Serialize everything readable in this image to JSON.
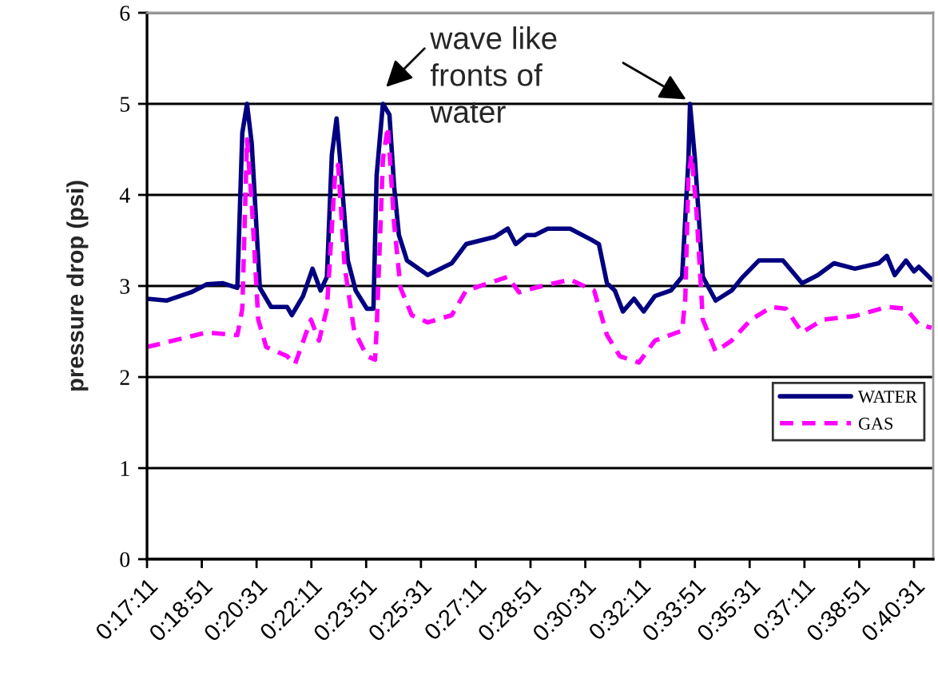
{
  "chart_data": {
    "type": "line",
    "ylabel": "pressure drop (psi)",
    "xlim": [
      0.28639,
      0.685
    ],
    "ylim": [
      0,
      6
    ],
    "yticks": [
      0,
      1,
      2,
      3,
      4,
      5,
      6
    ],
    "xticks": [
      {
        "value": 0.28639,
        "label": "0:17:11"
      },
      {
        "value": 0.31417,
        "label": "0:18:51"
      },
      {
        "value": 0.34194,
        "label": "0:20:31"
      },
      {
        "value": 0.36972,
        "label": "0:22:11"
      },
      {
        "value": 0.3975,
        "label": "0:23:51"
      },
      {
        "value": 0.42528,
        "label": "0:25:31"
      },
      {
        "value": 0.45306,
        "label": "0:27:11"
      },
      {
        "value": 0.48083,
        "label": "0:28:51"
      },
      {
        "value": 0.50861,
        "label": "0:30:31"
      },
      {
        "value": 0.53639,
        "label": "0:32:11"
      },
      {
        "value": 0.56417,
        "label": "0:33:51"
      },
      {
        "value": 0.59194,
        "label": "0:35:31"
      },
      {
        "value": 0.61972,
        "label": "0:37:11"
      },
      {
        "value": 0.6475,
        "label": "0:38:51"
      },
      {
        "value": 0.67528,
        "label": "0:40:31"
      }
    ],
    "grid": "y",
    "legend": "right",
    "marker": "none",
    "annotations": [
      {
        "text": "wave like\nfronts of\nwater",
        "x": 0.406,
        "y": 5.0
      }
    ],
    "series": [
      {
        "name": "WATER",
        "color": "#000080",
        "line_style": "solid",
        "x": [
          0.2864,
          0.2965,
          0.3087,
          0.3168,
          0.3249,
          0.3322,
          0.3347,
          0.3371,
          0.3395,
          0.3436,
          0.3493,
          0.3574,
          0.3598,
          0.3655,
          0.3703,
          0.3744,
          0.3776,
          0.3801,
          0.3825,
          0.3841,
          0.3882,
          0.3922,
          0.3979,
          0.4012,
          0.4028,
          0.406,
          0.4093,
          0.4117,
          0.4141,
          0.4182,
          0.4287,
          0.4409,
          0.4482,
          0.4628,
          0.4693,
          0.4733,
          0.479,
          0.4831,
          0.4896,
          0.5009,
          0.5115,
          0.5155,
          0.5196,
          0.5236,
          0.5277,
          0.5333,
          0.5382,
          0.5439,
          0.552,
          0.5577,
          0.5609,
          0.5617,
          0.5642,
          0.5682,
          0.5747,
          0.5828,
          0.5885,
          0.5966,
          0.6088,
          0.6185,
          0.6266,
          0.6347,
          0.6453,
          0.6574,
          0.6615,
          0.6655,
          0.6712,
          0.6753,
          0.6777,
          0.6842
        ],
        "values": [
          2.86,
          2.84,
          2.93,
          3.02,
          3.03,
          2.98,
          4.68,
          5.0,
          4.56,
          2.98,
          2.77,
          2.77,
          2.68,
          2.89,
          3.19,
          2.95,
          3.1,
          4.44,
          4.84,
          4.44,
          3.28,
          2.95,
          2.75,
          2.75,
          4.21,
          5.0,
          4.88,
          4.09,
          3.56,
          3.28,
          3.12,
          3.25,
          3.46,
          3.54,
          3.63,
          3.46,
          3.56,
          3.56,
          3.63,
          3.63,
          3.51,
          3.46,
          3.03,
          2.95,
          2.72,
          2.86,
          2.72,
          2.89,
          2.95,
          3.1,
          4.39,
          5.0,
          4.39,
          3.1,
          2.84,
          2.95,
          3.1,
          3.28,
          3.28,
          3.03,
          3.12,
          3.25,
          3.19,
          3.25,
          3.33,
          3.12,
          3.28,
          3.16,
          3.21,
          3.07
        ]
      },
      {
        "name": "GAS",
        "color": "#ff00ff",
        "line_style": "dashed",
        "x": [
          0.2864,
          0.3168,
          0.3322,
          0.3347,
          0.3371,
          0.3395,
          0.3428,
          0.3468,
          0.3574,
          0.3614,
          0.3695,
          0.3736,
          0.3776,
          0.3817,
          0.3833,
          0.3866,
          0.3914,
          0.3979,
          0.402,
          0.4028,
          0.406,
          0.4085,
          0.4117,
          0.4149,
          0.4206,
          0.4287,
          0.4409,
          0.4482,
          0.4693,
          0.475,
          0.4831,
          0.5009,
          0.5131,
          0.5196,
          0.5261,
          0.5358,
          0.5439,
          0.5577,
          0.5593,
          0.5609,
          0.5625,
          0.565,
          0.5682,
          0.5747,
          0.5828,
          0.5926,
          0.6031,
          0.6104,
          0.6185,
          0.629,
          0.6453,
          0.6615,
          0.6712,
          0.6777,
          0.6842
        ],
        "values": [
          2.33,
          2.49,
          2.46,
          2.75,
          4.61,
          3.91,
          2.63,
          2.33,
          2.23,
          2.14,
          2.63,
          2.4,
          2.75,
          4.21,
          4.33,
          3.21,
          2.51,
          2.23,
          2.19,
          2.51,
          4.39,
          4.75,
          3.68,
          2.98,
          2.68,
          2.6,
          2.68,
          2.95,
          3.1,
          2.93,
          2.98,
          3.07,
          2.95,
          2.46,
          2.23,
          2.16,
          2.4,
          2.51,
          2.86,
          4.21,
          4.44,
          3.81,
          2.63,
          2.28,
          2.4,
          2.63,
          2.77,
          2.75,
          2.49,
          2.63,
          2.67,
          2.77,
          2.75,
          2.58,
          2.54
        ]
      }
    ]
  }
}
